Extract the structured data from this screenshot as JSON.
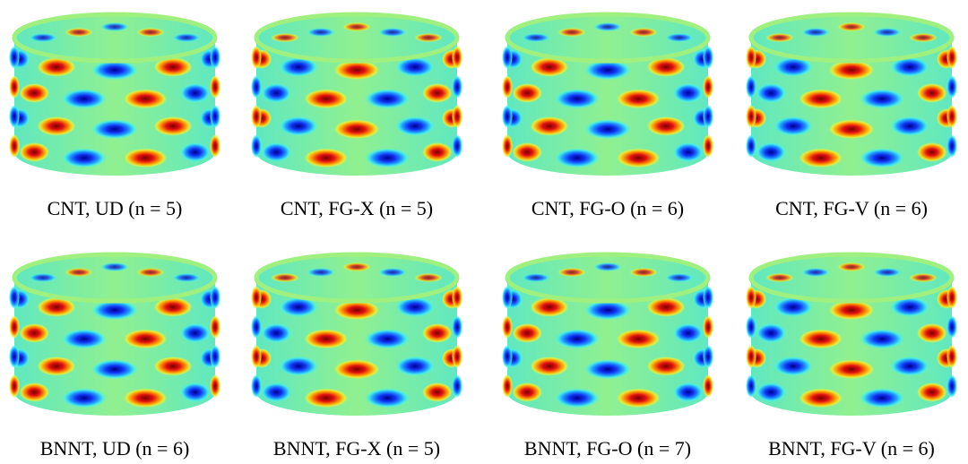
{
  "panels": [
    {
      "caption": "CNT, UD (n = 5)"
    },
    {
      "caption": "CNT, FG-X (n = 5)"
    },
    {
      "caption": "CNT, FG-O (n = 6)"
    },
    {
      "caption": "CNT, FG-V (n = 6)"
    },
    {
      "caption": "BNNT, UD (n = 6)"
    },
    {
      "caption": "BNNT, FG-X (n = 5)"
    },
    {
      "caption": "BNNT, FG-O (n = 7)"
    },
    {
      "caption": "BNNT, FG-V (n = 6)"
    }
  ]
}
